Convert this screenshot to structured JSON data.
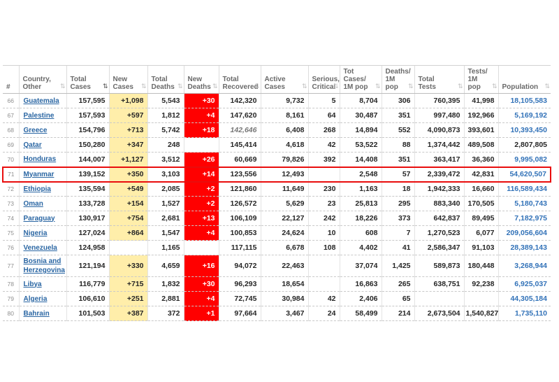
{
  "icons": {
    "sort": "⇅"
  },
  "colors": {
    "new_cases_bg": "#FFEEAA",
    "new_deaths_bg": "#FF0000",
    "new_deaths_text": "#FFFFFF",
    "highlight_border": "#E90D0D",
    "country_link": "#2A66A3",
    "population_link": "#3272B8",
    "header_text": "#696969",
    "estimated_value_text": "#767676"
  },
  "table": {
    "columns": [
      {
        "key": "rank",
        "lines": [
          "#"
        ],
        "sortable": false
      },
      {
        "key": "country",
        "lines": [
          "Country,",
          "Other"
        ],
        "sortable": true
      },
      {
        "key": "total_cases",
        "lines": [
          "Total",
          "Cases"
        ],
        "sortable": true,
        "sorted": "desc"
      },
      {
        "key": "new_cases",
        "lines": [
          "New",
          "Cases"
        ],
        "sortable": true
      },
      {
        "key": "total_deaths",
        "lines": [
          "Total",
          "Deaths"
        ],
        "sortable": true
      },
      {
        "key": "new_deaths",
        "lines": [
          "New",
          "Deaths"
        ],
        "sortable": true
      },
      {
        "key": "total_recovered",
        "lines": [
          "Total",
          "Recovered"
        ],
        "sortable": true
      },
      {
        "key": "active_cases",
        "lines": [
          "Active",
          "Cases"
        ],
        "sortable": true
      },
      {
        "key": "serious_critical",
        "lines": [
          "Serious,",
          "Critical"
        ],
        "sortable": true
      },
      {
        "key": "tot_cases_1m",
        "lines": [
          "Tot Cases/",
          "1M pop"
        ],
        "sortable": true
      },
      {
        "key": "deaths_1m",
        "lines": [
          "Deaths/",
          "1M pop"
        ],
        "sortable": true
      },
      {
        "key": "total_tests",
        "lines": [
          "Total",
          "Tests"
        ],
        "sortable": true
      },
      {
        "key": "tests_1m",
        "lines": [
          "Tests/",
          "1M pop"
        ],
        "sortable": true
      },
      {
        "key": "population",
        "lines": [
          "Population"
        ],
        "sortable": true
      }
    ],
    "rows": [
      {
        "rank": "66",
        "country": "Guatemala",
        "total_cases": "157,595",
        "new_cases": "+1,098",
        "total_deaths": "5,543",
        "new_deaths": "+30",
        "total_recovered": "142,320",
        "recovered_estimated": false,
        "active_cases": "9,732",
        "serious_critical": "5",
        "tot_cases_1m": "8,704",
        "deaths_1m": "306",
        "total_tests": "760,395",
        "tests_1m": "41,998",
        "population": "18,105,583",
        "population_is_link": true,
        "highlighted": false
      },
      {
        "rank": "67",
        "country": "Palestine",
        "total_cases": "157,593",
        "new_cases": "+597",
        "total_deaths": "1,812",
        "new_deaths": "+4",
        "total_recovered": "147,620",
        "recovered_estimated": false,
        "active_cases": "8,161",
        "serious_critical": "64",
        "tot_cases_1m": "30,487",
        "deaths_1m": "351",
        "total_tests": "997,480",
        "tests_1m": "192,966",
        "population": "5,169,192",
        "population_is_link": true,
        "highlighted": false
      },
      {
        "rank": "68",
        "country": "Greece",
        "total_cases": "154,796",
        "new_cases": "+713",
        "total_deaths": "5,742",
        "new_deaths": "+18",
        "total_recovered": "142,646",
        "recovered_estimated": true,
        "active_cases": "6,408",
        "serious_critical": "268",
        "tot_cases_1m": "14,894",
        "deaths_1m": "552",
        "total_tests": "4,090,873",
        "tests_1m": "393,601",
        "population": "10,393,450",
        "population_is_link": true,
        "highlighted": false
      },
      {
        "rank": "69",
        "country": "Qatar",
        "total_cases": "150,280",
        "new_cases": "+347",
        "total_deaths": "248",
        "new_deaths": "",
        "total_recovered": "145,414",
        "recovered_estimated": false,
        "active_cases": "4,618",
        "serious_critical": "42",
        "tot_cases_1m": "53,522",
        "deaths_1m": "88",
        "total_tests": "1,374,442",
        "tests_1m": "489,508",
        "population": "2,807,805",
        "population_is_link": false,
        "highlighted": false
      },
      {
        "rank": "70",
        "country": "Honduras",
        "total_cases": "144,007",
        "new_cases": "+1,127",
        "total_deaths": "3,512",
        "new_deaths": "+26",
        "total_recovered": "60,669",
        "recovered_estimated": false,
        "active_cases": "79,826",
        "serious_critical": "392",
        "tot_cases_1m": "14,408",
        "deaths_1m": "351",
        "total_tests": "363,417",
        "tests_1m": "36,360",
        "population": "9,995,082",
        "population_is_link": true,
        "highlighted": false
      },
      {
        "rank": "71",
        "country": "Myanmar",
        "total_cases": "139,152",
        "new_cases": "+350",
        "total_deaths": "3,103",
        "new_deaths": "+14",
        "total_recovered": "123,556",
        "recovered_estimated": false,
        "active_cases": "12,493",
        "serious_critical": "",
        "tot_cases_1m": "2,548",
        "deaths_1m": "57",
        "total_tests": "2,339,472",
        "tests_1m": "42,831",
        "population": "54,620,507",
        "population_is_link": true,
        "highlighted": true
      },
      {
        "rank": "72",
        "country": "Ethiopia",
        "total_cases": "135,594",
        "new_cases": "+549",
        "total_deaths": "2,085",
        "new_deaths": "+2",
        "total_recovered": "121,860",
        "recovered_estimated": false,
        "active_cases": "11,649",
        "serious_critical": "230",
        "tot_cases_1m": "1,163",
        "deaths_1m": "18",
        "total_tests": "1,942,333",
        "tests_1m": "16,660",
        "population": "116,589,434",
        "population_is_link": true,
        "highlighted": false
      },
      {
        "rank": "73",
        "country": "Oman",
        "total_cases": "133,728",
        "new_cases": "+154",
        "total_deaths": "1,527",
        "new_deaths": "+2",
        "total_recovered": "126,572",
        "recovered_estimated": false,
        "active_cases": "5,629",
        "serious_critical": "23",
        "tot_cases_1m": "25,813",
        "deaths_1m": "295",
        "total_tests": "883,340",
        "tests_1m": "170,505",
        "population": "5,180,743",
        "population_is_link": true,
        "highlighted": false
      },
      {
        "rank": "74",
        "country": "Paraguay",
        "total_cases": "130,917",
        "new_cases": "+754",
        "total_deaths": "2,681",
        "new_deaths": "+13",
        "total_recovered": "106,109",
        "recovered_estimated": false,
        "active_cases": "22,127",
        "serious_critical": "242",
        "tot_cases_1m": "18,226",
        "deaths_1m": "373",
        "total_tests": "642,837",
        "tests_1m": "89,495",
        "population": "7,182,975",
        "population_is_link": true,
        "highlighted": false
      },
      {
        "rank": "75",
        "country": "Nigeria",
        "total_cases": "127,024",
        "new_cases": "+864",
        "total_deaths": "1,547",
        "new_deaths": "+4",
        "total_recovered": "100,853",
        "recovered_estimated": false,
        "active_cases": "24,624",
        "serious_critical": "10",
        "tot_cases_1m": "608",
        "deaths_1m": "7",
        "total_tests": "1,270,523",
        "tests_1m": "6,077",
        "population": "209,056,604",
        "population_is_link": true,
        "highlighted": false
      },
      {
        "rank": "76",
        "country": "Venezuela",
        "total_cases": "124,958",
        "new_cases": "",
        "total_deaths": "1,165",
        "new_deaths": "",
        "total_recovered": "117,115",
        "recovered_estimated": false,
        "active_cases": "6,678",
        "serious_critical": "108",
        "tot_cases_1m": "4,402",
        "deaths_1m": "41",
        "total_tests": "2,586,347",
        "tests_1m": "91,103",
        "population": "28,389,143",
        "population_is_link": true,
        "highlighted": false
      },
      {
        "rank": "77",
        "country": "Bosnia and Herzegovina",
        "total_cases": "121,194",
        "new_cases": "+330",
        "total_deaths": "4,659",
        "new_deaths": "+16",
        "total_recovered": "94,072",
        "recovered_estimated": false,
        "active_cases": "22,463",
        "serious_critical": "",
        "tot_cases_1m": "37,074",
        "deaths_1m": "1,425",
        "total_tests": "589,873",
        "tests_1m": "180,448",
        "population": "3,268,944",
        "population_is_link": true,
        "highlighted": false
      },
      {
        "rank": "78",
        "country": "Libya",
        "total_cases": "116,779",
        "new_cases": "+715",
        "total_deaths": "1,832",
        "new_deaths": "+30",
        "total_recovered": "96,293",
        "recovered_estimated": false,
        "active_cases": "18,654",
        "serious_critical": "",
        "tot_cases_1m": "16,863",
        "deaths_1m": "265",
        "total_tests": "638,751",
        "tests_1m": "92,238",
        "population": "6,925,037",
        "population_is_link": true,
        "highlighted": false
      },
      {
        "rank": "79",
        "country": "Algeria",
        "total_cases": "106,610",
        "new_cases": "+251",
        "total_deaths": "2,881",
        "new_deaths": "+4",
        "total_recovered": "72,745",
        "recovered_estimated": false,
        "active_cases": "30,984",
        "serious_critical": "42",
        "tot_cases_1m": "2,406",
        "deaths_1m": "65",
        "total_tests": "",
        "tests_1m": "",
        "population": "44,305,184",
        "population_is_link": true,
        "highlighted": false
      },
      {
        "rank": "80",
        "country": "Bahrain",
        "total_cases": "101,503",
        "new_cases": "+387",
        "total_deaths": "372",
        "new_deaths": "+1",
        "total_recovered": "97,664",
        "recovered_estimated": false,
        "active_cases": "3,467",
        "serious_critical": "24",
        "tot_cases_1m": "58,499",
        "deaths_1m": "214",
        "total_tests": "2,673,504",
        "tests_1m": "1,540,827",
        "population": "1,735,110",
        "population_is_link": true,
        "highlighted": false
      }
    ]
  }
}
